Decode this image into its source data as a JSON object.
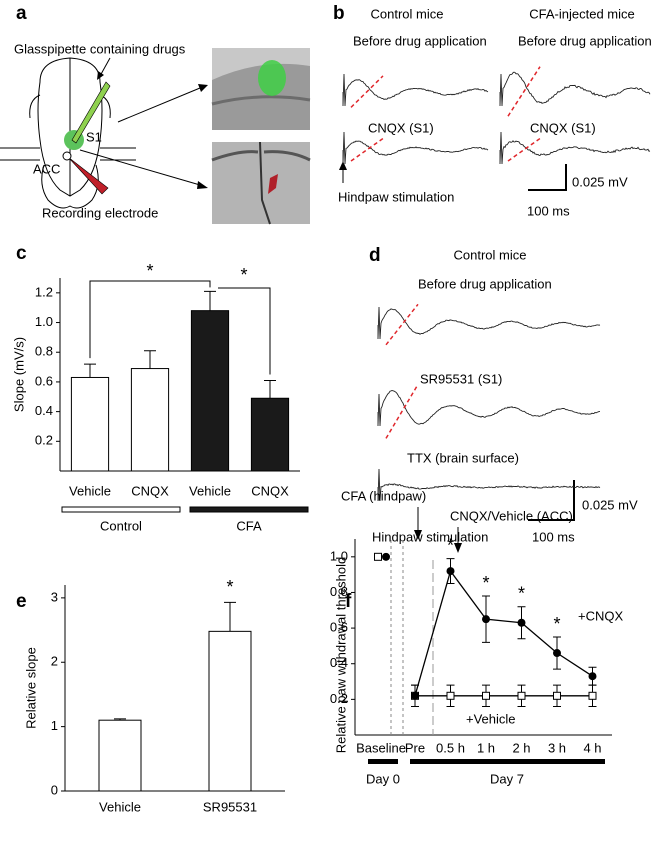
{
  "panel_labels": [
    "a",
    "b",
    "c",
    "d",
    "e",
    "f"
  ],
  "panel_a": {
    "pipette": "Glasspipette containing drugs",
    "s1": "S1",
    "acc": "ACC",
    "electrode": "Recording electrode"
  },
  "panel_b": {
    "titles": [
      "Control mice",
      "CFA-injected mice"
    ],
    "before": [
      "Before drug application",
      "Before drug application"
    ],
    "drug": [
      "CNQX (S1)",
      "CNQX (S1)"
    ],
    "stimulation": "Hindpaw stimulation",
    "scale_v": "0.025 mV",
    "scale_t": "100 ms"
  },
  "panel_d": {
    "title": "Control mice",
    "conditions": [
      "Before drug application",
      "SR95531 (S1)",
      "TTX (brain surface)"
    ],
    "stimulation": "Hindpaw stimulation",
    "scale_v": "0.025 mV",
    "scale_t": "100 ms"
  },
  "chart_data": [
    {
      "type": "bar",
      "ylabel": "Slope (mV/s)",
      "categories": [
        "Vehicle",
        "CNQX",
        "Vehicle",
        "CNQX"
      ],
      "values": [
        0.63,
        0.69,
        1.08,
        0.49
      ],
      "errors": [
        0.09,
        0.12,
        0.13,
        0.12
      ],
      "colors": [
        "#ffffff",
        "#ffffff",
        "#1a1a1a",
        "#1a1a1a"
      ],
      "groups": [
        {
          "name": "Control",
          "color": "#ffffff"
        },
        {
          "name": "CFA",
          "color": "#1a1a1a"
        }
      ],
      "significance": [
        "*",
        "*"
      ],
      "ylim": [
        0,
        1.3
      ],
      "yticks": [
        0.2,
        0.4,
        0.6,
        0.8,
        {
          "value": 1,
          "label": "1.0"
        },
        1.2
      ]
    },
    {
      "type": "bar",
      "ylabel": "Relative slope",
      "categories": [
        "Vehicle",
        "SR95531"
      ],
      "values": [
        1.1,
        2.48
      ],
      "errors": [
        0.02,
        0.45
      ],
      "colors": [
        "#ffffff",
        "#ffffff"
      ],
      "significance": [
        "*"
      ],
      "ylim": [
        0,
        3.2
      ],
      "yticks": [
        0,
        1,
        2,
        3
      ]
    },
    {
      "type": "line",
      "ylabel": "Relative paw withdrawal threshold",
      "categories": [
        "Baseline",
        "Pre",
        "0.5 h",
        "1 h",
        "2 h",
        "3 h",
        "4 h"
      ],
      "series": [
        {
          "name": "+CNQX",
          "color": "#000000",
          "marker": "circle",
          "values": [
            1.0,
            0.22,
            0.92,
            0.65,
            0.63,
            0.46,
            0.33
          ],
          "errors": [
            null,
            0.06,
            0.07,
            0.13,
            0.09,
            0.09,
            0.05
          ]
        },
        {
          "name": "+Vehicle",
          "color": "#000000",
          "marker": "square",
          "values": [
            1.0,
            0.22,
            0.22,
            0.22,
            0.22,
            0.22,
            0.22
          ],
          "errors": [
            null,
            0.06,
            0.06,
            0.06,
            0.06,
            0.06,
            0.06
          ]
        }
      ],
      "annotations": [
        "CFA (hindpaw)",
        "CNQX/Vehicle (ACC)"
      ],
      "days": [
        "Day 0",
        "Day 7"
      ],
      "significance": [
        "*",
        "*",
        "*",
        "*"
      ],
      "ylim": [
        0,
        1.1
      ],
      "yticks": [
        0.2,
        0.4,
        0.6,
        0.8,
        {
          "value": 1,
          "label": "1.0"
        }
      ]
    }
  ]
}
